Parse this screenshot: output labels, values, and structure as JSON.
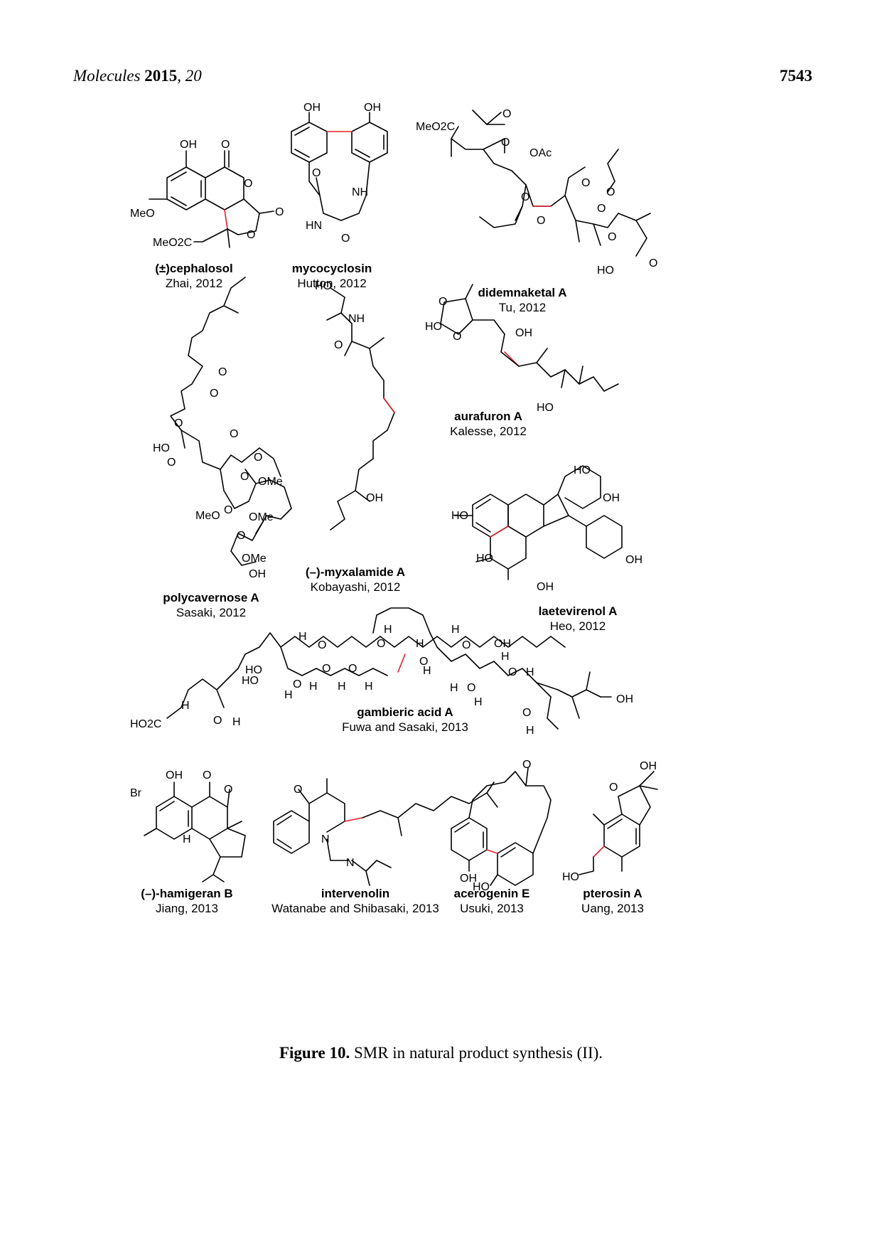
{
  "header": {
    "journal": "Molecules",
    "year": "2015",
    "volume": "20",
    "page_number": "7543"
  },
  "compounds": [
    {
      "name": "(±)cephalosol",
      "citation": "Zhai, 2012"
    },
    {
      "name": "mycocyclosin",
      "citation": "Hutton, 2012"
    },
    {
      "name": "didemnaketal A",
      "citation": "Tu, 2012"
    },
    {
      "name": "polycavernose A",
      "citation": "Sasaki, 2012"
    },
    {
      "name": "(–)-myxalamide A",
      "citation": "Kobayashi, 2012"
    },
    {
      "name": "aurafuron A",
      "citation": "Kalesse, 2012"
    },
    {
      "name": "laetevirenol A",
      "citation": "Heo, 2012"
    },
    {
      "name": "gambieric acid A",
      "citation": "Fuwa and Sasaki, 2013"
    },
    {
      "name": "(–)-hamigeran B",
      "citation": "Jiang, 2013"
    },
    {
      "name": "intervenolin",
      "citation": "Watanabe and Shibasaki, 2013"
    },
    {
      "name": "acerogenin E",
      "citation": "Usuki, 2013"
    },
    {
      "name": "pterosin A",
      "citation": "Uang, 2013"
    }
  ],
  "atom_labels": {
    "OH": "OH",
    "HO": "HO",
    "O": "O",
    "MeO": "MeO",
    "MeO2C": "MeO2C",
    "NH": "NH",
    "HN": "HN",
    "OAc": "OAc",
    "OMe": "OMe",
    "H": "H",
    "N": "N",
    "Br": "Br",
    "HO2C": "HO2C"
  },
  "caption": {
    "label": "Figure 10.",
    "text": " SMR in natural product synthesis (II)."
  }
}
